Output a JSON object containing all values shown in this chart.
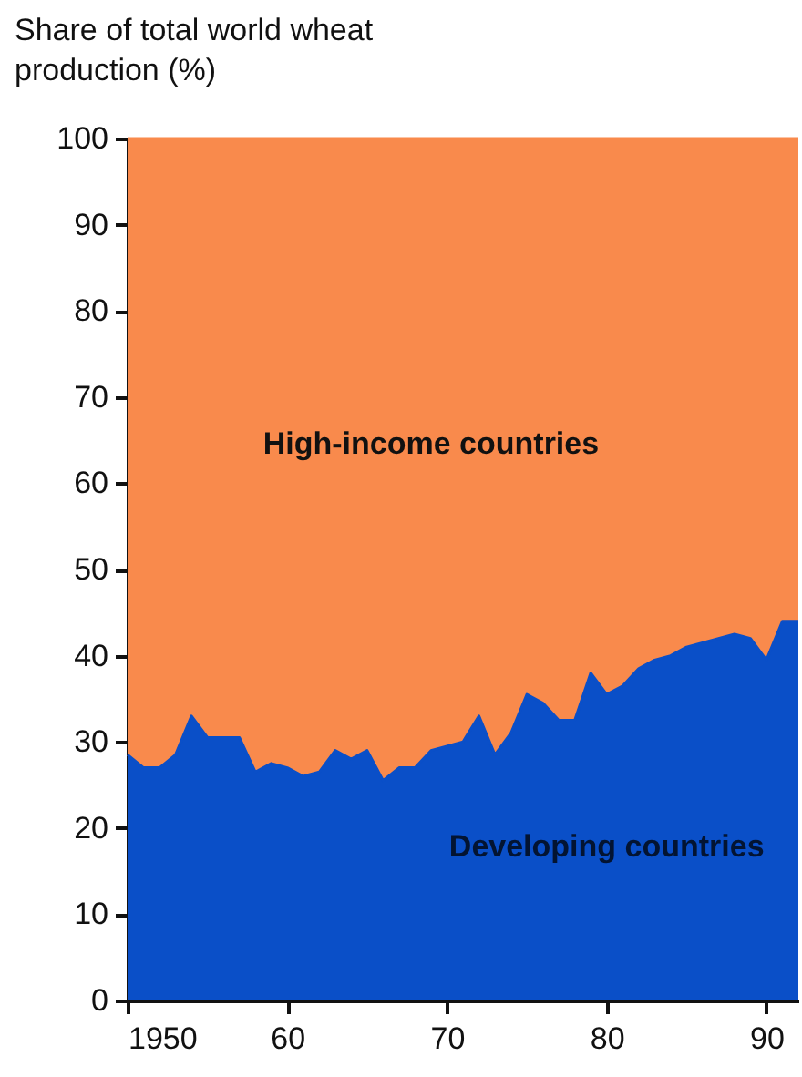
{
  "chart_data": {
    "type": "area",
    "stacked": true,
    "ylabel": "Share of total world wheat production (%)",
    "x": [
      1950,
      1951,
      1952,
      1953,
      1954,
      1955,
      1956,
      1957,
      1958,
      1959,
      1960,
      1961,
      1962,
      1963,
      1964,
      1965,
      1966,
      1967,
      1968,
      1969,
      1970,
      1971,
      1972,
      1973,
      1974,
      1975,
      1976,
      1977,
      1978,
      1979,
      1980,
      1981,
      1982,
      1983,
      1984,
      1985,
      1986,
      1987,
      1988,
      1989,
      1990,
      1991,
      1992
    ],
    "series": [
      {
        "name": "Developing countries",
        "color": "#0a4fc8",
        "values": [
          28.5,
          27,
          27,
          28.5,
          33,
          30.5,
          30.5,
          30.5,
          26.5,
          27.5,
          27,
          26,
          26.5,
          29,
          28,
          29,
          25.5,
          27,
          27,
          29,
          29.5,
          30,
          33,
          28.5,
          31,
          35.5,
          34.5,
          32.5,
          32.5,
          38,
          35.5,
          36.5,
          38.5,
          39.5,
          40,
          41,
          41.5,
          42,
          42.5,
          42,
          39.5,
          44,
          44
        ]
      },
      {
        "name": "High-income countries",
        "color": "#f98a4c",
        "values": [
          71.5,
          73,
          73,
          71.5,
          67,
          69.5,
          69.5,
          69.5,
          73.5,
          72.5,
          73,
          74,
          73.5,
          71,
          72,
          71,
          74.5,
          73,
          73,
          71,
          70.5,
          70,
          67,
          71.5,
          69,
          64.5,
          65.5,
          67.5,
          67.5,
          62,
          64.5,
          63.5,
          61.5,
          60.5,
          60,
          59,
          58.5,
          58,
          57.5,
          58,
          60.5,
          56,
          56
        ]
      }
    ],
    "xlim": [
      1950,
      1992
    ],
    "xticks": [
      1950,
      {
        "value": 1960,
        "label": "60"
      },
      {
        "value": 1970,
        "label": "70"
      },
      {
        "value": 1980,
        "label": "80"
      },
      {
        "value": 1990,
        "label": "90"
      }
    ],
    "ylim": [
      0,
      100
    ],
    "yticks": [
      0,
      10,
      20,
      30,
      40,
      50,
      60,
      70,
      80,
      90,
      100
    ],
    "grid": false,
    "legend": false
  }
}
